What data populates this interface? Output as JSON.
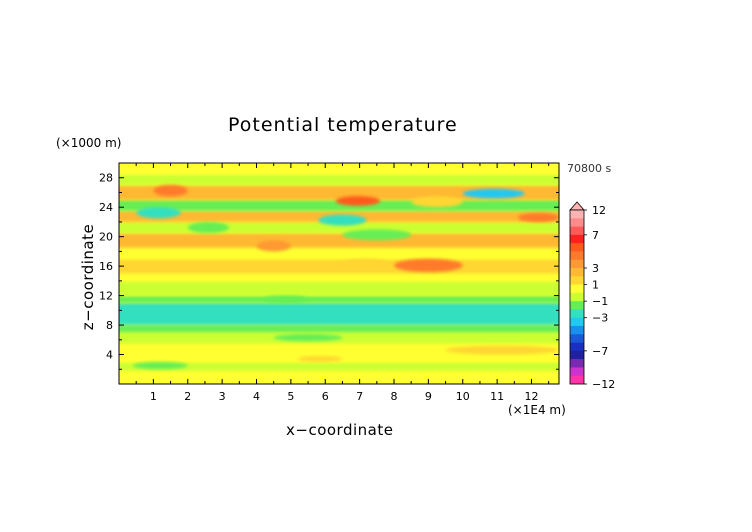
{
  "chart_data": {
    "type": "heatmap",
    "title": "Potential temperature",
    "xlabel": "x−coordinate",
    "ylabel": "z−coordinate",
    "x_unit": "(×1E4 m)",
    "y_unit": "(×1000 m)",
    "timestamp": "70800 s",
    "xlim": [
      0,
      12.8
    ],
    "ylim": [
      0,
      30
    ],
    "x_ticks": [
      "1",
      "2",
      "3",
      "4",
      "5",
      "6",
      "7",
      "8",
      "9",
      "10",
      "11",
      "12"
    ],
    "y_ticks": [
      "4",
      "8",
      "12",
      "16",
      "20",
      "24",
      "28"
    ],
    "colorbar": {
      "ticks": [
        "12",
        "7",
        "3",
        "1",
        "−1",
        "−3",
        "−7",
        "−12"
      ],
      "levels": [
        12,
        10,
        8,
        7,
        6,
        5,
        4,
        3,
        2,
        1,
        0,
        -1,
        -2,
        -3,
        -4,
        -5,
        -6,
        -7,
        -8,
        -10,
        -12
      ],
      "colors": [
        "#ffb3b3",
        "#ff8c8c",
        "#ff5a5a",
        "#ff2020",
        "#ff5a1e",
        "#ff7a2a",
        "#ff9933",
        "#ffb833",
        "#ffd633",
        "#ffff33",
        "#ccff33",
        "#66ee55",
        "#33e0c0",
        "#22c8f0",
        "#1a90ee",
        "#1a5ad8",
        "#1a30c0",
        "#2020a0",
        "#7a2ab0",
        "#cc33cc",
        "#ff33aa"
      ]
    },
    "bands": [
      {
        "z": [
          0,
          0.6
        ],
        "anomaly": 0
      },
      {
        "z": [
          0.6,
          1.8
        ],
        "anomaly": 0.3
      },
      {
        "z": [
          1.8,
          3.0
        ],
        "anomaly": -0.4
      },
      {
        "z": [
          3.0,
          5.5
        ],
        "anomaly": 0.6
      },
      {
        "z": [
          5.5,
          7.0
        ],
        "anomaly": -0.2
      },
      {
        "z": [
          7.0,
          8.0
        ],
        "anomaly": -1.2
      },
      {
        "z": [
          8.0,
          11.0
        ],
        "anomaly": -2.6
      },
      {
        "z": [
          11.0,
          12.0
        ],
        "anomaly": -1.1
      },
      {
        "z": [
          12.0,
          14.0
        ],
        "anomaly": -0.6
      },
      {
        "z": [
          14.0,
          15.0
        ],
        "anomaly": 0.4
      },
      {
        "z": [
          15.0,
          17.0
        ],
        "anomaly": 1.8
      },
      {
        "z": [
          17.0,
          18.5
        ],
        "anomaly": 0.4
      },
      {
        "z": [
          18.5,
          20.5
        ],
        "anomaly": 2.2
      },
      {
        "z": [
          20.5,
          22.0
        ],
        "anomaly": -0.4
      },
      {
        "z": [
          22.0,
          23.5
        ],
        "anomaly": 2.8
      },
      {
        "z": [
          23.5,
          25.0
        ],
        "anomaly": -1.5
      },
      {
        "z": [
          25.0,
          27.0
        ],
        "anomaly": 2.4
      },
      {
        "z": [
          27.0,
          28.5
        ],
        "anomaly": -0.6
      },
      {
        "z": [
          28.5,
          30.0
        ],
        "anomaly": 0.8
      }
    ],
    "features": [
      {
        "x": [
          10.0,
          11.8
        ],
        "z": [
          25.2,
          26.5
        ],
        "anomaly": -3.2
      },
      {
        "x": [
          6.3,
          7.6
        ],
        "z": [
          24.2,
          25.5
        ],
        "anomaly": 5.0
      },
      {
        "x": [
          5.8,
          7.2
        ],
        "z": [
          21.5,
          23.0
        ],
        "anomaly": -3.0
      },
      {
        "x": [
          8.0,
          10.0
        ],
        "z": [
          15.2,
          17.0
        ],
        "anomaly": 4.0
      },
      {
        "x": [
          4.0,
          5.0
        ],
        "z": [
          18.0,
          19.5
        ],
        "anomaly": 3.5
      },
      {
        "x": [
          2.0,
          3.2
        ],
        "z": [
          20.5,
          22.0
        ],
        "anomaly": -1.2
      },
      {
        "x": [
          11.6,
          12.8
        ],
        "z": [
          22.0,
          23.2
        ],
        "anomaly": 4.0
      },
      {
        "x": [
          1.0,
          2.0
        ],
        "z": [
          25.5,
          27.0
        ],
        "anomaly": 4.0
      },
      {
        "x": [
          0.5,
          1.8
        ],
        "z": [
          22.5,
          24.0
        ],
        "anomaly": -2.5
      },
      {
        "x": [
          6.5,
          8.5
        ],
        "z": [
          19.5,
          21.0
        ],
        "anomaly": -1.8
      },
      {
        "x": [
          8.5,
          10.0
        ],
        "z": [
          24.0,
          25.5
        ],
        "anomaly": 1.2
      },
      {
        "x": [
          4.5,
          6.5
        ],
        "z": [
          5.8,
          6.8
        ],
        "anomaly": -2.0
      },
      {
        "x": [
          9.5,
          12.8
        ],
        "z": [
          4.0,
          5.2
        ],
        "anomaly": 1.4
      },
      {
        "x": [
          0.4,
          2.0
        ],
        "z": [
          2.0,
          3.0
        ],
        "anomaly": -1.2
      },
      {
        "x": [
          5.2,
          6.5
        ],
        "z": [
          3.0,
          3.8
        ],
        "anomaly": 1.2
      },
      {
        "x": [
          4.2,
          5.5
        ],
        "z": [
          11.0,
          12.0
        ],
        "anomaly": -1.6
      },
      {
        "x": [
          6.5,
          7.8
        ],
        "z": [
          16.0,
          17.0
        ],
        "anomaly": 1.6
      }
    ]
  }
}
